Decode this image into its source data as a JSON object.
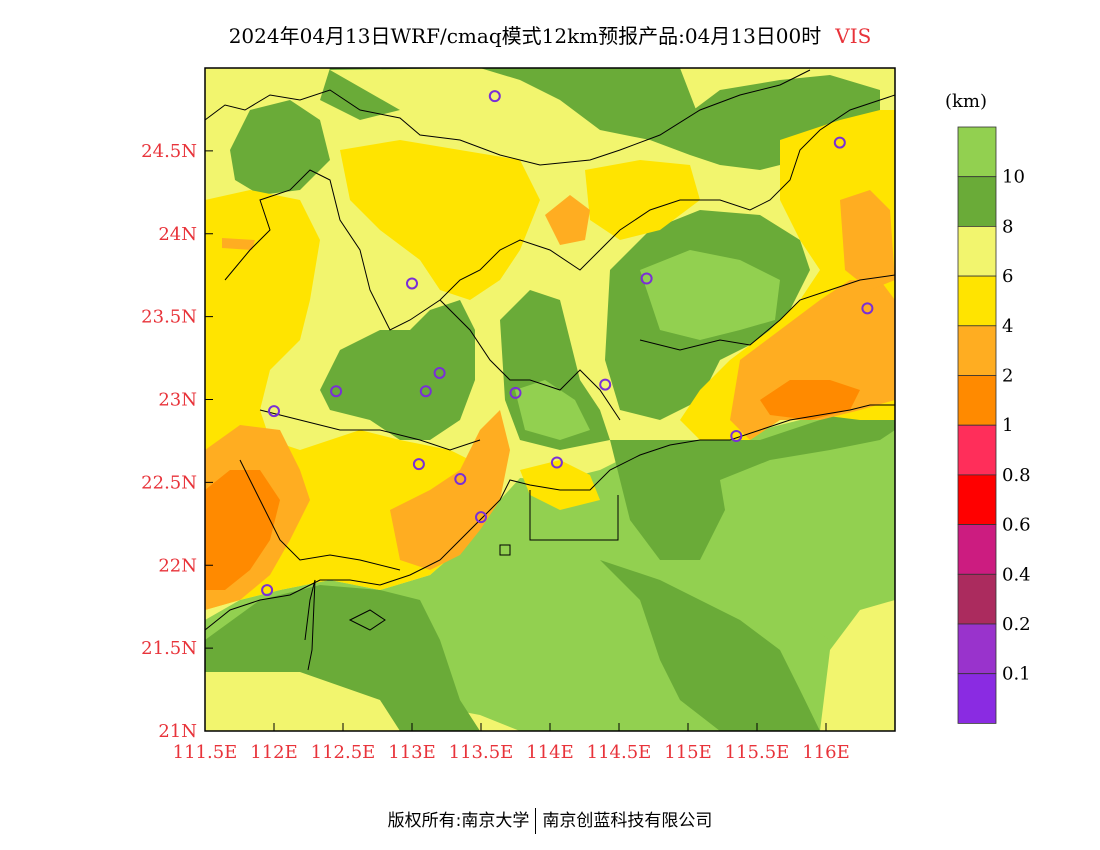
{
  "title": {
    "main": "2024年04月13日WRF/cmaq模式12km预报产品:04月13日00时",
    "variable": "VIS"
  },
  "map": {
    "lon_range": [
      111.5,
      116.5
    ],
    "lat_range": [
      21.0,
      25.0
    ],
    "x_ticks": [
      "111.5E",
      "112E",
      "112.5E",
      "113E",
      "113.5E",
      "114E",
      "114.5E",
      "115E",
      "115.5E",
      "116E"
    ],
    "y_ticks": [
      "21N",
      "21.5N",
      "22N",
      "22.5N",
      "23N",
      "23.5N",
      "24N",
      "24.5N"
    ],
    "stations": [
      {
        "lon": 113.6,
        "lat": 24.83
      },
      {
        "lon": 116.1,
        "lat": 24.55
      },
      {
        "lon": 113.0,
        "lat": 23.7
      },
      {
        "lon": 114.7,
        "lat": 23.73
      },
      {
        "lon": 116.3,
        "lat": 23.55
      },
      {
        "lon": 112.45,
        "lat": 23.05
      },
      {
        "lon": 113.1,
        "lat": 23.05
      },
      {
        "lon": 113.2,
        "lat": 23.16
      },
      {
        "lon": 113.75,
        "lat": 23.04
      },
      {
        "lon": 114.4,
        "lat": 23.09
      },
      {
        "lon": 112.0,
        "lat": 22.93
      },
      {
        "lon": 115.35,
        "lat": 22.78
      },
      {
        "lon": 113.05,
        "lat": 22.61
      },
      {
        "lon": 113.35,
        "lat": 22.52
      },
      {
        "lon": 114.05,
        "lat": 22.62
      },
      {
        "lon": 113.5,
        "lat": 22.29
      },
      {
        "lon": 111.95,
        "lat": 21.85
      }
    ]
  },
  "colorbar": {
    "unit": "(km)",
    "labels": [
      "10",
      "8",
      "6",
      "4",
      "2",
      "1",
      "0.8",
      "0.6",
      "0.4",
      "0.2",
      "0.1"
    ],
    "colors": [
      "#92d050",
      "#6aab38",
      "#f2f56e",
      "#ffe400",
      "#ffad21",
      "#ff8a00",
      "#ff2e5a",
      "#ff0000",
      "#cc1c80",
      "#ab2b5e",
      "#9933cc",
      "#8a2be2"
    ]
  },
  "footer": {
    "left": "版权所有:南京大学",
    "right": "南京创蓝科技有限公司"
  }
}
